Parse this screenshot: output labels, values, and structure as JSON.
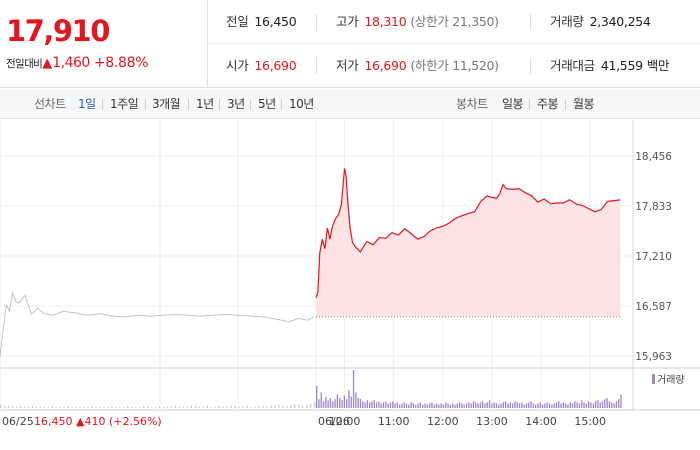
{
  "summary": {
    "price": "17,910",
    "change_label": "전일대비",
    "change_arrow": "▲",
    "change_amount": "1,460",
    "change_percent": "+8.88%",
    "rows": [
      [
        {
          "key": "전일",
          "value": "16,450",
          "sub": "",
          "red": false
        },
        {
          "key": "고가",
          "value": "18,310",
          "sub": "(상한가 21,350)",
          "red": true
        },
        {
          "key": "거래량",
          "value": "2,340,254",
          "sub": "",
          "red": false
        }
      ],
      [
        {
          "key": "시가",
          "value": "16,690",
          "sub": "",
          "red": true
        },
        {
          "key": "저가",
          "value": "16,690",
          "sub": "(하한가 11,520)",
          "red": true
        },
        {
          "key": "거래대금",
          "value": "41,559",
          "sub": "백만",
          "red": false
        }
      ]
    ]
  },
  "toolbar": {
    "line_chart_label": "선차트",
    "periods": [
      "1일",
      "1주일",
      "3개월",
      "1년",
      "3년",
      "5년",
      "10년"
    ],
    "active_period": 0,
    "candle_chart_label": "봉차트",
    "candle_periods": [
      "일봉",
      "주봉",
      "월봉"
    ]
  },
  "colors": {
    "up": "#e0171f",
    "active_tab": "#2b5bbd",
    "prev_day_line": "#c4c4c4",
    "fill": "#fde3e3",
    "volume": "#9a86c8"
  },
  "chart_data": {
    "type": "line",
    "y_ticks": [
      "18,456",
      "17,833",
      "17,210",
      "16,587",
      "15,963"
    ],
    "ylim": [
      15963,
      18456
    ],
    "volume_legend": "거래량",
    "x_labels": [
      {
        "label": "06/25",
        "session": "prev",
        "pos": 0
      },
      {
        "label": "06/26",
        "session": "today",
        "pos": 0
      },
      {
        "label": "10:00",
        "session": "today",
        "pos": 0.09
      },
      {
        "label": "11:00",
        "session": "today",
        "pos": 0.245
      },
      {
        "label": "12:00",
        "session": "today",
        "pos": 0.4
      },
      {
        "label": "13:00",
        "session": "today",
        "pos": 0.555
      },
      {
        "label": "14:00",
        "session": "today",
        "pos": 0.71
      },
      {
        "label": "15:00",
        "session": "today",
        "pos": 0.865
      }
    ],
    "prev_day_info": {
      "date": "06/25",
      "price": "16,450",
      "arrow": "▲",
      "change": "410",
      "percent": "(+2.56%)"
    },
    "prev_close": 16450,
    "series": [
      {
        "session": "prev",
        "points": [
          [
            0,
            15950
          ],
          [
            0.01,
            16290
          ],
          [
            0.02,
            16600
          ],
          [
            0.03,
            16520
          ],
          [
            0.04,
            16750
          ],
          [
            0.05,
            16640
          ],
          [
            0.06,
            16620
          ],
          [
            0.08,
            16720
          ],
          [
            0.1,
            16480
          ],
          [
            0.12,
            16560
          ],
          [
            0.14,
            16490
          ],
          [
            0.17,
            16470
          ],
          [
            0.2,
            16520
          ],
          [
            0.24,
            16500
          ],
          [
            0.28,
            16470
          ],
          [
            0.32,
            16490
          ],
          [
            0.36,
            16460
          ],
          [
            0.4,
            16450
          ],
          [
            0.44,
            16470
          ],
          [
            0.48,
            16460
          ],
          [
            0.52,
            16470
          ],
          [
            0.56,
            16480
          ],
          [
            0.6,
            16470
          ],
          [
            0.64,
            16460
          ],
          [
            0.68,
            16470
          ],
          [
            0.72,
            16480
          ],
          [
            0.76,
            16470
          ],
          [
            0.8,
            16460
          ],
          [
            0.84,
            16450
          ],
          [
            0.88,
            16420
          ],
          [
            0.92,
            16390
          ],
          [
            0.95,
            16430
          ],
          [
            0.98,
            16410
          ],
          [
            1.0,
            16450
          ]
        ]
      },
      {
        "session": "today",
        "points": [
          [
            0,
            16690
          ],
          [
            0.006,
            16760
          ],
          [
            0.012,
            17250
          ],
          [
            0.02,
            17420
          ],
          [
            0.028,
            17300
          ],
          [
            0.036,
            17560
          ],
          [
            0.044,
            17420
          ],
          [
            0.052,
            17580
          ],
          [
            0.062,
            17680
          ],
          [
            0.072,
            17730
          ],
          [
            0.08,
            17850
          ],
          [
            0.09,
            18300
          ],
          [
            0.095,
            18200
          ],
          [
            0.1,
            17900
          ],
          [
            0.107,
            17580
          ],
          [
            0.115,
            17380
          ],
          [
            0.125,
            17320
          ],
          [
            0.14,
            17260
          ],
          [
            0.16,
            17390
          ],
          [
            0.18,
            17350
          ],
          [
            0.2,
            17440
          ],
          [
            0.22,
            17430
          ],
          [
            0.24,
            17500
          ],
          [
            0.26,
            17470
          ],
          [
            0.28,
            17550
          ],
          [
            0.3,
            17490
          ],
          [
            0.32,
            17420
          ],
          [
            0.34,
            17450
          ],
          [
            0.36,
            17520
          ],
          [
            0.38,
            17560
          ],
          [
            0.4,
            17580
          ],
          [
            0.42,
            17620
          ],
          [
            0.44,
            17680
          ],
          [
            0.46,
            17710
          ],
          [
            0.48,
            17740
          ],
          [
            0.5,
            17760
          ],
          [
            0.52,
            17890
          ],
          [
            0.54,
            17960
          ],
          [
            0.555,
            17940
          ],
          [
            0.57,
            17930
          ],
          [
            0.58,
            17990
          ],
          [
            0.59,
            18100
          ],
          [
            0.6,
            18050
          ],
          [
            0.62,
            18040
          ],
          [
            0.64,
            18050
          ],
          [
            0.66,
            18000
          ],
          [
            0.68,
            17960
          ],
          [
            0.7,
            17880
          ],
          [
            0.72,
            17920
          ],
          [
            0.74,
            17860
          ],
          [
            0.76,
            17870
          ],
          [
            0.78,
            17870
          ],
          [
            0.8,
            17910
          ],
          [
            0.82,
            17860
          ],
          [
            0.84,
            17840
          ],
          [
            0.86,
            17800
          ],
          [
            0.88,
            17760
          ],
          [
            0.9,
            17790
          ],
          [
            0.92,
            17890
          ],
          [
            0.94,
            17900
          ],
          [
            0.96,
            17910
          ]
        ]
      }
    ],
    "volume": {
      "prev": [
        3,
        2,
        2,
        2,
        1,
        2,
        1,
        1,
        2,
        1,
        1,
        1,
        1,
        2,
        1,
        1,
        1,
        2,
        1,
        1,
        1,
        1,
        1,
        2,
        1,
        1,
        1,
        1,
        2,
        1,
        1,
        1,
        2,
        1,
        1,
        1,
        2,
        2,
        1,
        1,
        2,
        1,
        1,
        1,
        2,
        1,
        1,
        1,
        2,
        2,
        1,
        1,
        2,
        1,
        1,
        2,
        1,
        1,
        2,
        2,
        1,
        1,
        2,
        1,
        1,
        2,
        2,
        1,
        2,
        2,
        3,
        2,
        2,
        2,
        3,
        3,
        2,
        3,
        4,
        5
      ],
      "today": [
        20,
        8,
        14,
        6,
        10,
        7,
        9,
        6,
        8,
        12,
        9,
        7,
        11,
        8,
        16,
        10,
        34,
        14,
        9,
        8,
        6,
        5,
        7,
        5,
        6,
        7,
        5,
        6,
        4,
        5,
        6,
        4,
        5,
        6,
        4,
        5,
        3,
        4,
        5,
        4,
        3,
        5,
        4,
        3,
        4,
        5,
        3,
        4,
        3,
        4,
        5,
        3,
        4,
        3,
        4,
        3,
        5,
        4,
        3,
        4,
        3,
        4,
        5,
        4,
        3,
        4,
        5,
        4,
        6,
        5,
        4,
        5,
        6,
        4,
        5,
        7,
        4,
        5,
        4,
        3,
        4,
        5,
        6,
        4,
        5,
        4,
        6,
        5,
        4,
        5,
        3,
        4,
        5,
        6,
        4,
        3,
        4,
        5,
        3,
        4,
        5,
        4,
        3,
        4,
        5,
        6,
        4,
        5,
        4,
        3,
        5,
        4,
        6,
        5,
        4,
        7,
        5,
        4,
        6,
        5,
        4,
        6,
        7,
        5,
        6,
        8,
        9,
        6,
        5,
        4,
        6,
        8,
        12
      ]
    }
  }
}
